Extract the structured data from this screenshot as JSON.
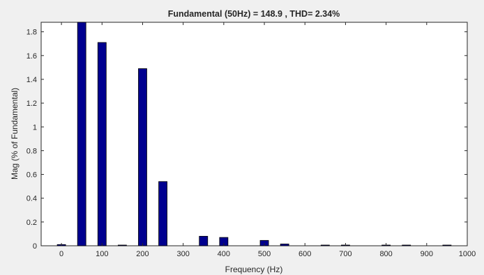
{
  "chart_data": {
    "type": "bar",
    "title": "Fundamental (50Hz) = 148.9 , THD= 2.34%",
    "xlabel": "Frequency (Hz)",
    "ylabel": "Mag (% of Fundamental)",
    "xlim": [
      -50,
      1000
    ],
    "ylim": [
      0,
      1.88
    ],
    "xticks": [
      0,
      100,
      200,
      300,
      400,
      500,
      600,
      700,
      800,
      900,
      1000
    ],
    "yticks": [
      0,
      0.2,
      0.4,
      0.6,
      0.8,
      1,
      1.2,
      1.4,
      1.6,
      1.8
    ],
    "x": [
      0,
      50,
      100,
      150,
      200,
      250,
      300,
      350,
      400,
      450,
      500,
      550,
      600,
      650,
      700,
      750,
      800,
      850,
      900,
      950
    ],
    "values": [
      0.01,
      1.88,
      1.71,
      0.005,
      1.49,
      0.54,
      0,
      0.08,
      0.07,
      0,
      0.045,
      0.015,
      0,
      0.004,
      0.004,
      0,
      0.004,
      0.004,
      0,
      0.004
    ],
    "bar_color": "#00008f",
    "bar_edge_color": "#000000",
    "grid": false,
    "legend": "none"
  }
}
